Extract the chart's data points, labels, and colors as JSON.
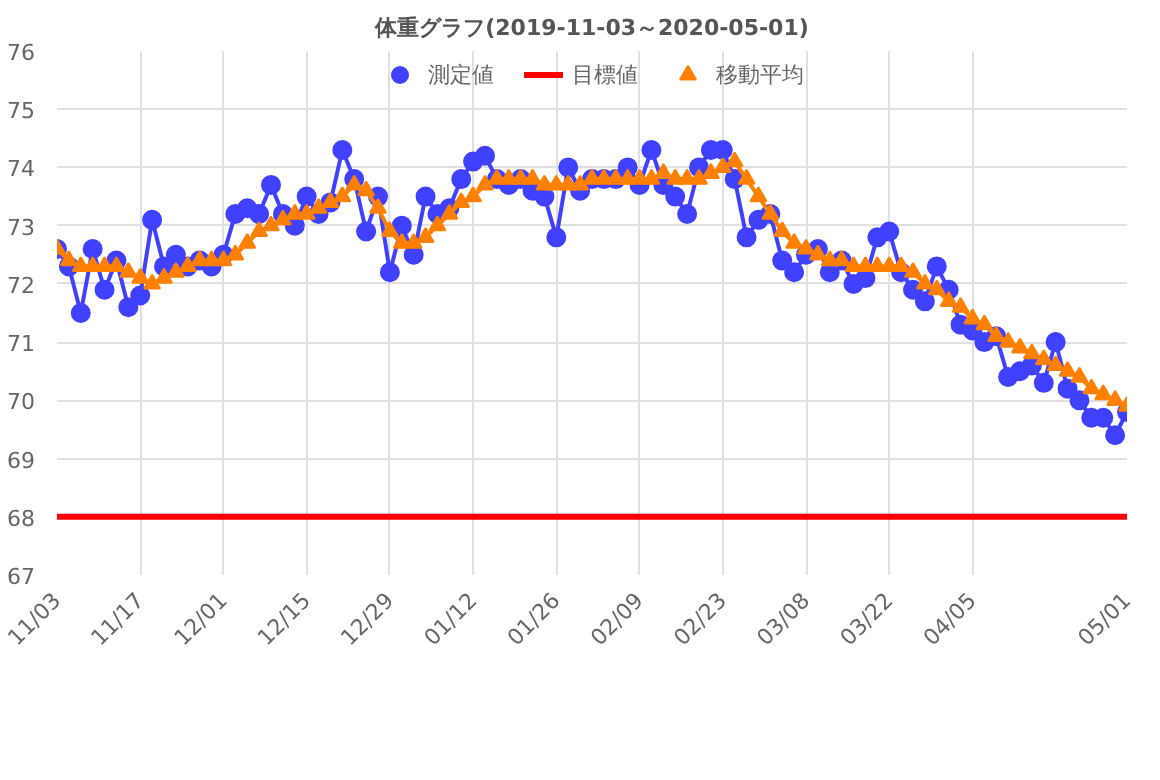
{
  "chart_data": {
    "type": "line",
    "title": "体重グラフ(2019-11-03～2020-05-01)",
    "x": [
      "2019-11-03",
      "2019-11-05",
      "2019-11-07",
      "2019-11-09",
      "2019-11-11",
      "2019-11-13",
      "2019-11-15",
      "2019-11-17",
      "2019-11-19",
      "2019-11-21",
      "2019-11-23",
      "2019-11-25",
      "2019-11-27",
      "2019-11-29",
      "2019-12-01",
      "2019-12-03",
      "2019-12-05",
      "2019-12-07",
      "2019-12-09",
      "2019-12-11",
      "2019-12-13",
      "2019-12-15",
      "2019-12-17",
      "2019-12-19",
      "2019-12-21",
      "2019-12-23",
      "2019-12-25",
      "2019-12-27",
      "2019-12-29",
      "2019-12-31",
      "2020-01-02",
      "2020-01-04",
      "2020-01-06",
      "2020-01-08",
      "2020-01-10",
      "2020-01-12",
      "2020-01-14",
      "2020-01-16",
      "2020-01-18",
      "2020-01-20",
      "2020-01-22",
      "2020-01-24",
      "2020-01-26",
      "2020-01-28",
      "2020-01-30",
      "2020-02-01",
      "2020-02-03",
      "2020-02-05",
      "2020-02-07",
      "2020-02-09",
      "2020-02-11",
      "2020-02-13",
      "2020-02-15",
      "2020-02-17",
      "2020-02-19",
      "2020-02-21",
      "2020-02-23",
      "2020-02-25",
      "2020-02-27",
      "2020-02-29",
      "2020-03-02",
      "2020-03-04",
      "2020-03-06",
      "2020-03-08",
      "2020-03-10",
      "2020-03-12",
      "2020-03-14",
      "2020-03-16",
      "2020-03-18",
      "2020-03-20",
      "2020-03-22",
      "2020-03-24",
      "2020-03-26",
      "2020-03-28",
      "2020-03-30",
      "2020-04-01",
      "2020-04-03",
      "2020-04-05",
      "2020-04-07",
      "2020-04-09",
      "2020-04-11",
      "2020-04-13",
      "2020-04-15",
      "2020-04-17",
      "2020-04-19",
      "2020-04-21",
      "2020-04-23",
      "2020-04-25",
      "2020-04-27",
      "2020-04-29",
      "2020-05-01"
    ],
    "series": [
      {
        "name": "測定値",
        "color": "#4040ff",
        "marker": "circle",
        "values": [
          72.6,
          72.3,
          71.5,
          72.6,
          71.9,
          72.4,
          71.6,
          71.8,
          73.1,
          72.3,
          72.5,
          72.3,
          72.4,
          72.3,
          72.5,
          73.2,
          73.3,
          73.2,
          73.7,
          73.2,
          73.0,
          73.5,
          73.2,
          73.4,
          74.3,
          73.8,
          72.9,
          73.5,
          72.2,
          73.0,
          72.5,
          73.5,
          73.2,
          73.3,
          73.8,
          74.1,
          74.2,
          73.8,
          73.7,
          73.8,
          73.6,
          73.5,
          72.8,
          74.0,
          73.6,
          73.8,
          73.8,
          73.8,
          74.0,
          73.7,
          74.3,
          73.7,
          73.5,
          73.2,
          74.0,
          74.3,
          74.3,
          73.8,
          72.8,
          73.1,
          73.2,
          72.4,
          72.2,
          72.5,
          72.6,
          72.2,
          72.4,
          72.0,
          72.1,
          72.8,
          72.9,
          72.2,
          71.9,
          71.7,
          72.3,
          71.9,
          71.3,
          71.2,
          71.0,
          71.1,
          70.4,
          70.5,
          70.6,
          70.3,
          71.0,
          70.2,
          70.0,
          69.7,
          69.7,
          69.4,
          69.8
        ]
      },
      {
        "name": "移動平均",
        "color": "#ff8000",
        "marker": "triangle",
        "values": [
          72.6,
          72.4,
          72.3,
          72.3,
          72.3,
          72.3,
          72.2,
          72.1,
          72.0,
          72.1,
          72.2,
          72.3,
          72.4,
          72.4,
          72.4,
          72.5,
          72.7,
          72.9,
          73.0,
          73.1,
          73.2,
          73.2,
          73.3,
          73.4,
          73.5,
          73.7,
          73.6,
          73.3,
          72.9,
          72.7,
          72.7,
          72.8,
          73.0,
          73.2,
          73.4,
          73.5,
          73.7,
          73.8,
          73.8,
          73.8,
          73.8,
          73.7,
          73.7,
          73.7,
          73.7,
          73.8,
          73.8,
          73.8,
          73.8,
          73.8,
          73.8,
          73.9,
          73.8,
          73.8,
          73.8,
          73.9,
          74.0,
          74.1,
          73.8,
          73.5,
          73.2,
          72.9,
          72.7,
          72.6,
          72.5,
          72.4,
          72.4,
          72.3,
          72.3,
          72.3,
          72.3,
          72.3,
          72.2,
          72.0,
          71.9,
          71.7,
          71.6,
          71.4,
          71.3,
          71.1,
          71.0,
          70.9,
          70.8,
          70.7,
          70.6,
          70.5,
          70.4,
          70.2,
          70.1,
          70.0,
          69.9
        ]
      }
    ],
    "ref_lines": [
      {
        "axis": "y",
        "value": 68,
        "label": "目標値",
        "color": "#ff0000"
      }
    ],
    "xlim": [
      "2019-11-03",
      "2020-05-01"
    ],
    "xticks": [
      {
        "value": "2019-11-03",
        "label": "11/03"
      },
      {
        "value": "2019-11-17",
        "label": "11/17"
      },
      {
        "value": "2019-12-01",
        "label": "12/01"
      },
      {
        "value": "2019-12-15",
        "label": "12/15"
      },
      {
        "value": "2019-12-29",
        "label": "12/29"
      },
      {
        "value": "2020-01-12",
        "label": "01/12"
      },
      {
        "value": "2020-01-26",
        "label": "01/26"
      },
      {
        "value": "2020-02-09",
        "label": "02/09"
      },
      {
        "value": "2020-02-23",
        "label": "02/23"
      },
      {
        "value": "2020-03-08",
        "label": "03/08"
      },
      {
        "value": "2020-03-22",
        "label": "03/22"
      },
      {
        "value": "2020-04-05",
        "label": "04/05"
      },
      {
        "value": "2020-05-01",
        "label": "05/01"
      }
    ],
    "ylim": [
      67,
      76
    ],
    "yticks": [
      67,
      68,
      69,
      70,
      71,
      72,
      73,
      74,
      75,
      76
    ],
    "grid": true,
    "legend": "top",
    "line_style": "solid"
  }
}
